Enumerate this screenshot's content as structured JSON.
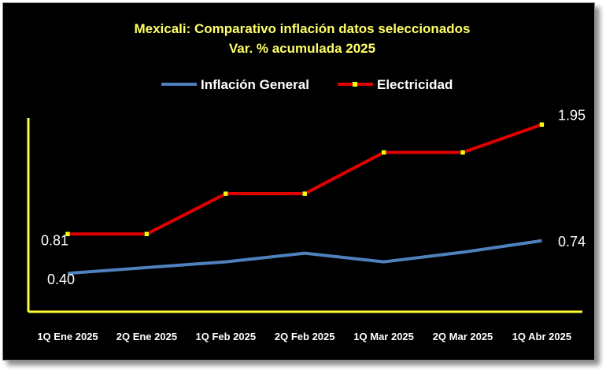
{
  "chart_data": {
    "type": "line",
    "title": "Mexicali: Comparativo inflación datos seleccionados",
    "subtitle": "Var. % acumulada 2025",
    "categories": [
      "1Q Ene 2025",
      "2Q Ene 2025",
      "1Q Feb 2025",
      "2Q Feb 2025",
      "1Q Mar 2025",
      "2Q Mar 2025",
      "1Q Abr 2025"
    ],
    "series": [
      {
        "name": "Inflación General",
        "color": "#4f81bd",
        "values": [
          0.4,
          0.46,
          0.52,
          0.61,
          0.52,
          0.62,
          0.74
        ],
        "labels": [
          "0.40",
          "",
          "",
          "",
          "",
          "",
          "0.74"
        ]
      },
      {
        "name": "Electricidad",
        "color": "#e00000",
        "marker_color": "#ffff00",
        "values": [
          0.81,
          0.81,
          1.23,
          1.23,
          1.66,
          1.66,
          1.95
        ],
        "labels": [
          "0.81",
          "",
          "",
          "",
          "",
          "",
          "1.95"
        ]
      }
    ],
    "ylim": [
      0,
      2.1
    ],
    "xlabel": "",
    "ylabel": "",
    "legend": "top-center",
    "grid": false,
    "axis_color": "#ffff33",
    "title_color": "#ffff66"
  }
}
